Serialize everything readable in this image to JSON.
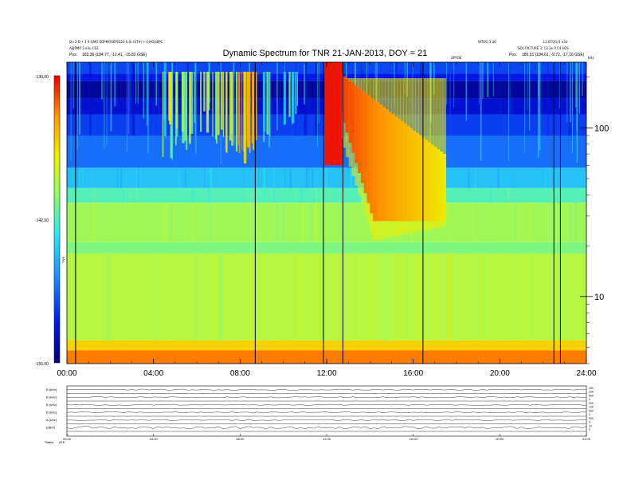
{
  "header": {
    "title": "Dynamic Spectrum for TNR 21-JAN-2013, DOY = 21",
    "left_line1": "Dn 2-D  • 3 X GMO EDPMOSEP(D20 0.0) (ST#) • 4-HOG8PC",
    "left_line2": "ASJPM0 3 e3u CS2",
    "left_pos_label": "Pos:",
    "left_pos_value": "183.36 (184.77, -12.41, -15.82 GSE)",
    "right_top_a": "WTOG 3.a0",
    "right_top_b": "L3 BTOG/3 e3U",
    "right_line2": "SOL PICTURE 3: 13.3e 0 C4 H2S",
    "right_pos_label": "Pos:",
    "right_pos_value": "185.51 (184.61, -9.72, -17.16 GSE)",
    "center_small": "OPYOE",
    "corner_small": "kHz"
  },
  "colorbar": {
    "ticks": [
      "-130.00",
      "-142.50",
      "-155.00"
    ],
    "label": "TNR"
  },
  "chart_data": {
    "type": "heatmap",
    "title": "Dynamic Spectrum for TNR 21-JAN-2013, DOY = 21",
    "x_ticks": [
      "00:00",
      "04:00",
      "08:00",
      "12:00",
      "16:00",
      "20:00",
      "24:00"
    ],
    "x_range_hours": [
      0,
      24
    ],
    "y_scale": "log",
    "y_unit": "kHz",
    "y_range": [
      4,
      245
    ],
    "y_ticks": [
      10,
      100
    ],
    "color_range": [
      -155.0,
      -130.0
    ],
    "colormap": [
      "#00007a",
      "#0018e8",
      "#1e8cff",
      "#2ce8f0",
      "#8cfa6e",
      "#f0f000",
      "#ff9400",
      "#e80000"
    ],
    "background_bands": [
      {
        "f_min": 4.0,
        "f_max": 4.8,
        "level": 0.88
      },
      {
        "f_min": 4.8,
        "f_max": 5.5,
        "level": 0.76
      },
      {
        "f_min": 5.5,
        "f_max": 18,
        "level": 0.63
      },
      {
        "f_min": 18,
        "f_max": 21,
        "level": 0.55
      },
      {
        "f_min": 21,
        "f_max": 36,
        "level": 0.6
      },
      {
        "f_min": 36,
        "f_max": 44,
        "level": 0.49
      },
      {
        "f_min": 44,
        "f_max": 58,
        "level": 0.37
      },
      {
        "f_min": 58,
        "f_max": 90,
        "level": 0.25
      },
      {
        "f_min": 90,
        "f_max": 120,
        "level": 0.19
      },
      {
        "f_min": 120,
        "f_max": 150,
        "level": 0.11
      },
      {
        "f_min": 150,
        "f_max": 190,
        "level": 0.04
      },
      {
        "f_min": 190,
        "f_max": 210,
        "level": 0.14
      },
      {
        "f_min": 210,
        "f_max": 245,
        "level": 0.2
      }
    ],
    "type_iii_bursts": [
      {
        "t": 4.7,
        "f_low": 70,
        "level": 0.65
      },
      {
        "t": 5.0,
        "f_low": 90,
        "level": 0.75
      },
      {
        "t": 5.5,
        "f_low": 80,
        "level": 0.7
      },
      {
        "t": 6.2,
        "f_low": 100,
        "level": 0.7
      },
      {
        "t": 7.0,
        "f_low": 85,
        "level": 0.75
      },
      {
        "t": 7.6,
        "f_low": 75,
        "level": 0.85
      },
      {
        "t": 8.0,
        "f_low": 70,
        "level": 0.95
      },
      {
        "t": 8.4,
        "f_low": 65,
        "level": 0.88
      },
      {
        "t": 9.3,
        "f_low": 80,
        "level": 0.6
      },
      {
        "t": 10.3,
        "f_low": 110,
        "level": 0.55
      }
    ],
    "storm": {
      "t_start": 11.9,
      "t_end": 17.5,
      "f_peak": 245,
      "f_floor": 28
    },
    "data_gaps_hours": [
      0.4,
      8.7,
      11.85,
      12.75,
      16.45,
      22.5,
      22.8
    ]
  },
  "stack_panel": {
    "rows": [
      {
        "label": "B (kHz)",
        "ticks": [
          "200",
          "100"
        ]
      },
      {
        "label": "B (kHz)",
        "ticks": [
          "500",
          "0"
        ]
      },
      {
        "label": "B (kHz)",
        "ticks": [
          "200",
          "100"
        ]
      },
      {
        "label": "B (kHz)",
        "ticks": [
          "500",
          "0"
        ]
      },
      {
        "label": "A (kHz)",
        "ticks": [
          "500",
          "0"
        ]
      },
      {
        "label": "(dB/V)",
        "ticks": [
          "10",
          "0"
        ]
      }
    ],
    "x_ticks": [
      "00:00",
      "04:00",
      "08:00",
      "12:00",
      "16:00",
      "20:00",
      "24:00"
    ],
    "status_label": "Status",
    "status_value": "ATE"
  }
}
